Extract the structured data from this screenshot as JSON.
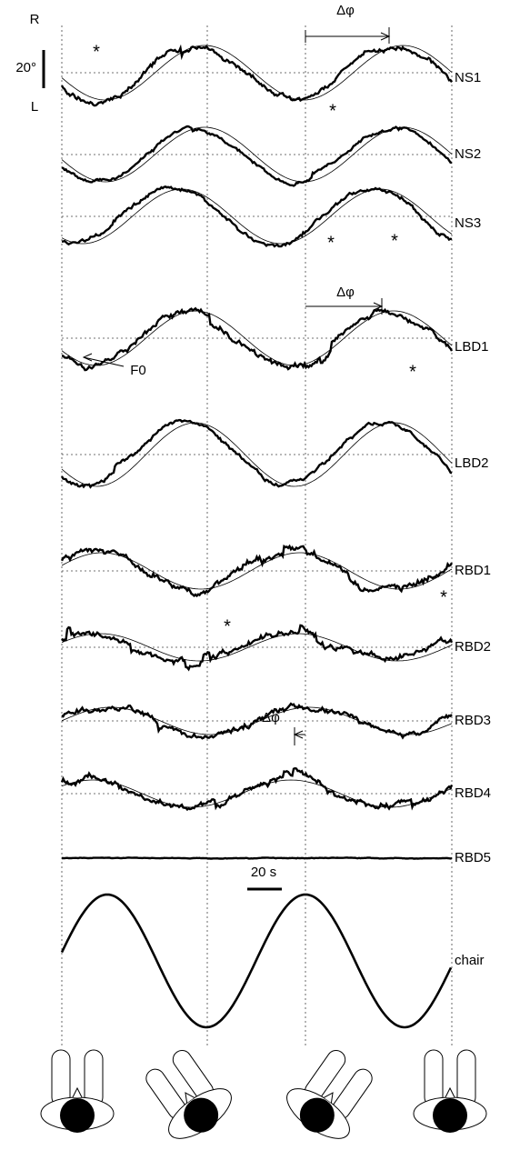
{
  "scale": {
    "top": "R",
    "bottom": "L",
    "amplitude": "20°",
    "time": "20 s"
  },
  "traces": [
    {
      "label": "NS1"
    },
    {
      "label": "NS2"
    },
    {
      "label": "NS3"
    },
    {
      "label": "LBD1"
    },
    {
      "label": "LBD2"
    },
    {
      "label": "RBD1"
    },
    {
      "label": "RBD2"
    },
    {
      "label": "RBD3"
    },
    {
      "label": "RBD4"
    },
    {
      "label": "RBD5"
    },
    {
      "label": "chair"
    }
  ],
  "annotations": [
    {
      "text": "Δφ"
    },
    {
      "text": "Δφ"
    },
    {
      "text": "Δφ"
    },
    {
      "text": "F0"
    },
    {
      "text": "*"
    },
    {
      "text": "*"
    },
    {
      "text": "*"
    },
    {
      "text": "*"
    },
    {
      "text": "*"
    },
    {
      "text": "*"
    },
    {
      "text": "*"
    }
  ]
}
